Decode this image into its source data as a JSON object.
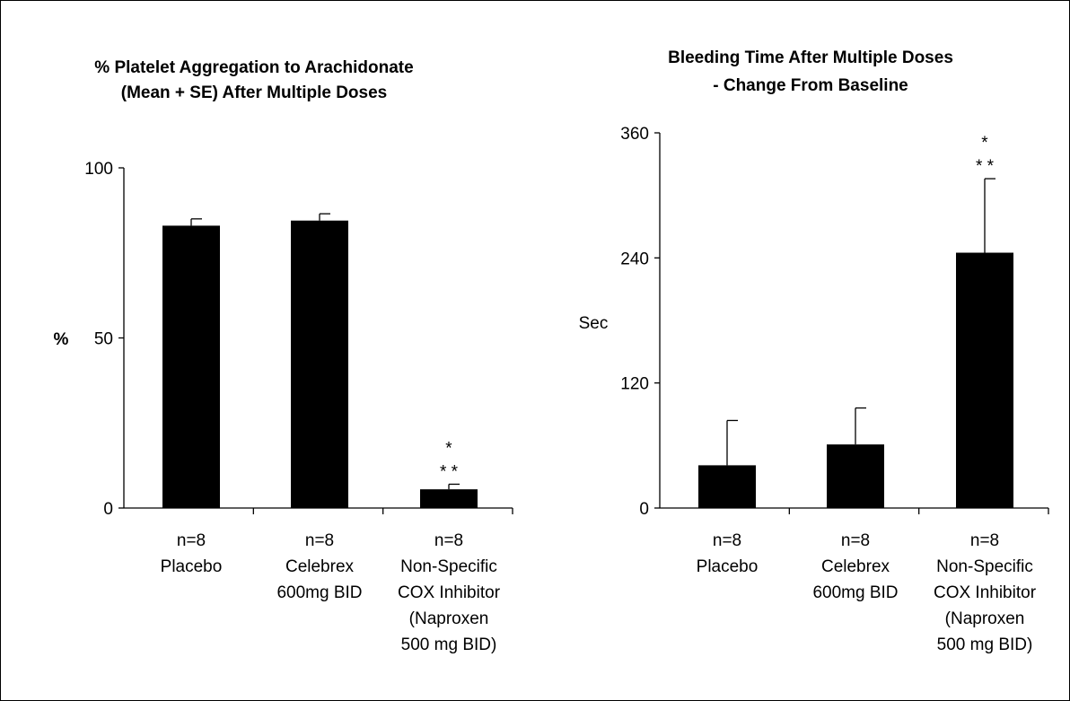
{
  "chart_data": [
    {
      "type": "bar",
      "title_lines": [
        "% Platelet Aggregation to Arachidonate",
        "(Mean + SE) After Multiple Doses"
      ],
      "xlabel": "",
      "ylabel": "%",
      "ylim": [
        0,
        100
      ],
      "yticks": [
        "0",
        "50",
        "100"
      ],
      "categories": [
        [
          "n=8",
          "Placebo"
        ],
        [
          "n=8",
          "Celebrex",
          "600mg BID"
        ],
        [
          "n=8",
          "Non-Specific",
          "COX Inhibitor",
          "(Naproxen",
          "500 mg BID)"
        ]
      ],
      "values": [
        83,
        84.5,
        5.5
      ],
      "errors": [
        2,
        2,
        1.5
      ],
      "annotations": [
        null,
        null,
        [
          "*",
          "* *"
        ]
      ],
      "bar_color": "#000000"
    },
    {
      "type": "bar",
      "title_lines": [
        "Bleeding Time After Multiple Doses",
        "- Change From Baseline"
      ],
      "xlabel": "",
      "ylabel": "Sec",
      "ylim": [
        0,
        360
      ],
      "yticks": [
        "0",
        "120",
        "240",
        "360"
      ],
      "categories": [
        [
          "n=8",
          "Placebo"
        ],
        [
          "n=8",
          "Celebrex",
          "600mg BID"
        ],
        [
          "n=8",
          "Non-Specific",
          "COX Inhibitor",
          "(Naproxen",
          "500 mg BID)"
        ]
      ],
      "values": [
        41,
        61,
        245
      ],
      "errors": [
        43,
        35,
        71
      ],
      "annotations": [
        null,
        null,
        [
          "*",
          "* *"
        ]
      ],
      "bar_color": "#000000"
    }
  ]
}
